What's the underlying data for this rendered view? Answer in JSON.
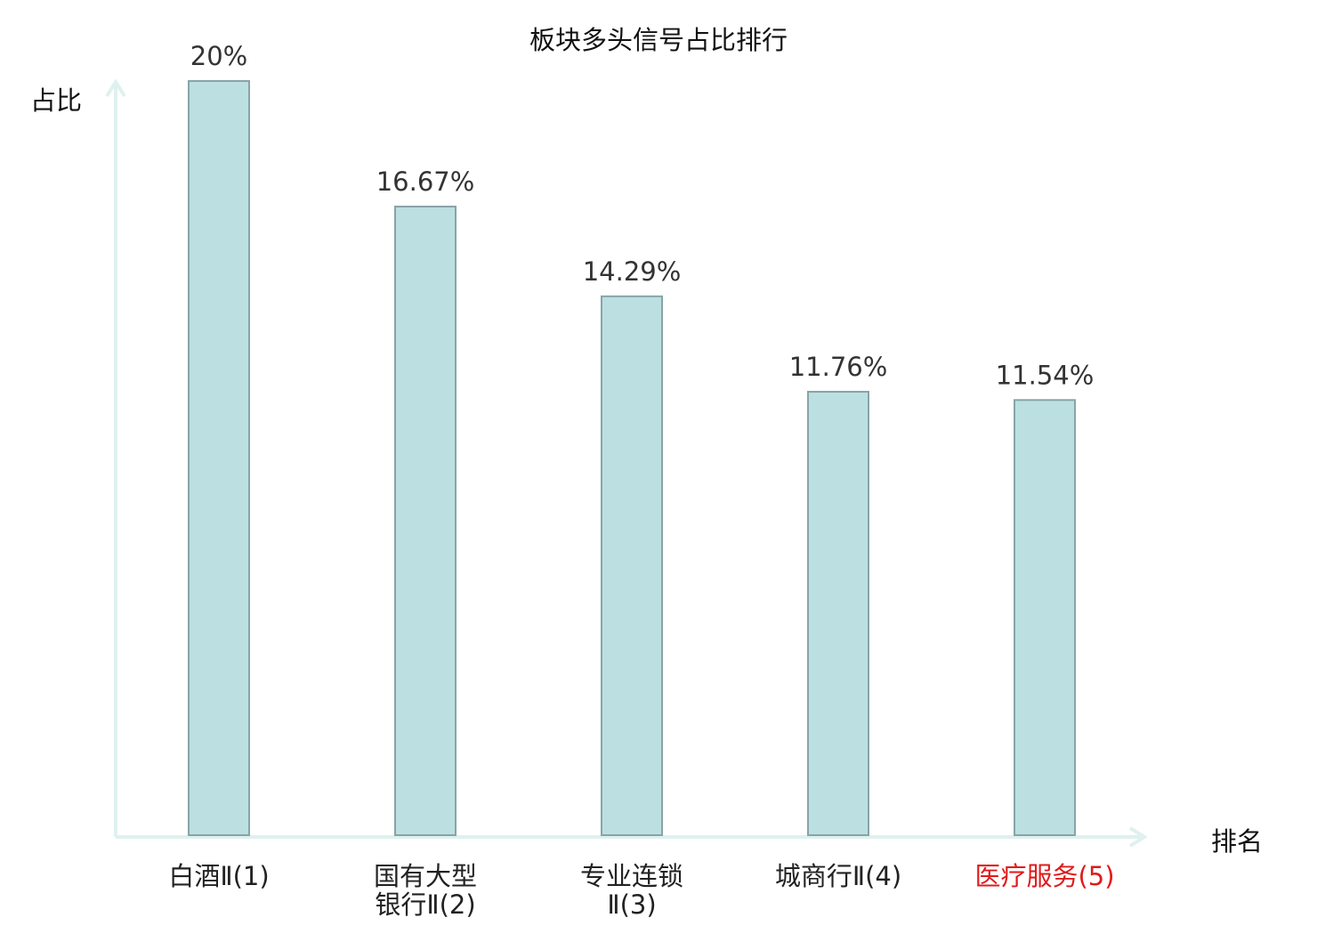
{
  "chart_data": {
    "type": "bar",
    "title": "板块多头信号占比排行",
    "ylabel": "占比",
    "xlabel": "排名",
    "ylim": [
      0,
      20
    ],
    "grid": false,
    "categories": [
      [
        "白酒Ⅱ(1)"
      ],
      [
        "国有大型",
        "银行Ⅱ(2)"
      ],
      [
        "专业连锁",
        "Ⅱ(3)"
      ],
      [
        "城商行Ⅱ(4)"
      ],
      [
        "医疗服务(5)"
      ]
    ],
    "values": [
      20,
      16.67,
      14.29,
      11.76,
      11.54
    ],
    "value_labels": [
      "20%",
      "16.67%",
      "14.29%",
      "11.76%",
      "11.54%"
    ],
    "highlight_index": 4
  },
  "colors": {
    "bar_fill": "#bce0e1",
    "bar_stroke": "#88a4a6",
    "axis": "#dff1ef",
    "text": "#222222",
    "highlight": "#e01b1b"
  }
}
